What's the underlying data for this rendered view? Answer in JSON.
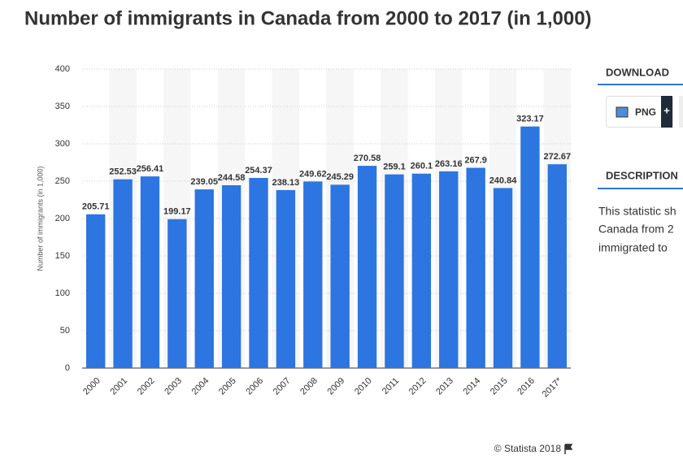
{
  "chart_data": {
    "type": "bar",
    "title": "Number of immigrants in Canada from 2000 to 2017 (in 1,000)",
    "y_label": "Number of immigrants (in 1,000)",
    "categories": [
      "2000",
      "2001",
      "2002",
      "2003",
      "2004",
      "2005",
      "2006",
      "2007",
      "2008",
      "2009",
      "2010",
      "2011",
      "2012",
      "2013",
      "2014",
      "2015",
      "2016",
      "2017*"
    ],
    "values": [
      205.71,
      252.53,
      256.41,
      199.17,
      239.05,
      244.58,
      254.37,
      238.13,
      249.62,
      245.29,
      270.58,
      259.1,
      260.1,
      263.16,
      267.9,
      240.84,
      323.17,
      272.67
    ],
    "color": "#2d75e0",
    "ylim": [
      0,
      400
    ],
    "yticks": [
      0,
      50,
      100,
      150,
      200,
      250,
      300,
      350,
      400
    ],
    "grid": true
  },
  "sidebar": {
    "download": "DOWNLOAD",
    "png": "PNG",
    "plus": "+",
    "description": "DESCRIPTION",
    "description_lines": [
      "This statistic sh",
      "Canada from 2",
      "immigrated to"
    ]
  },
  "footer": "© Statista 2018"
}
